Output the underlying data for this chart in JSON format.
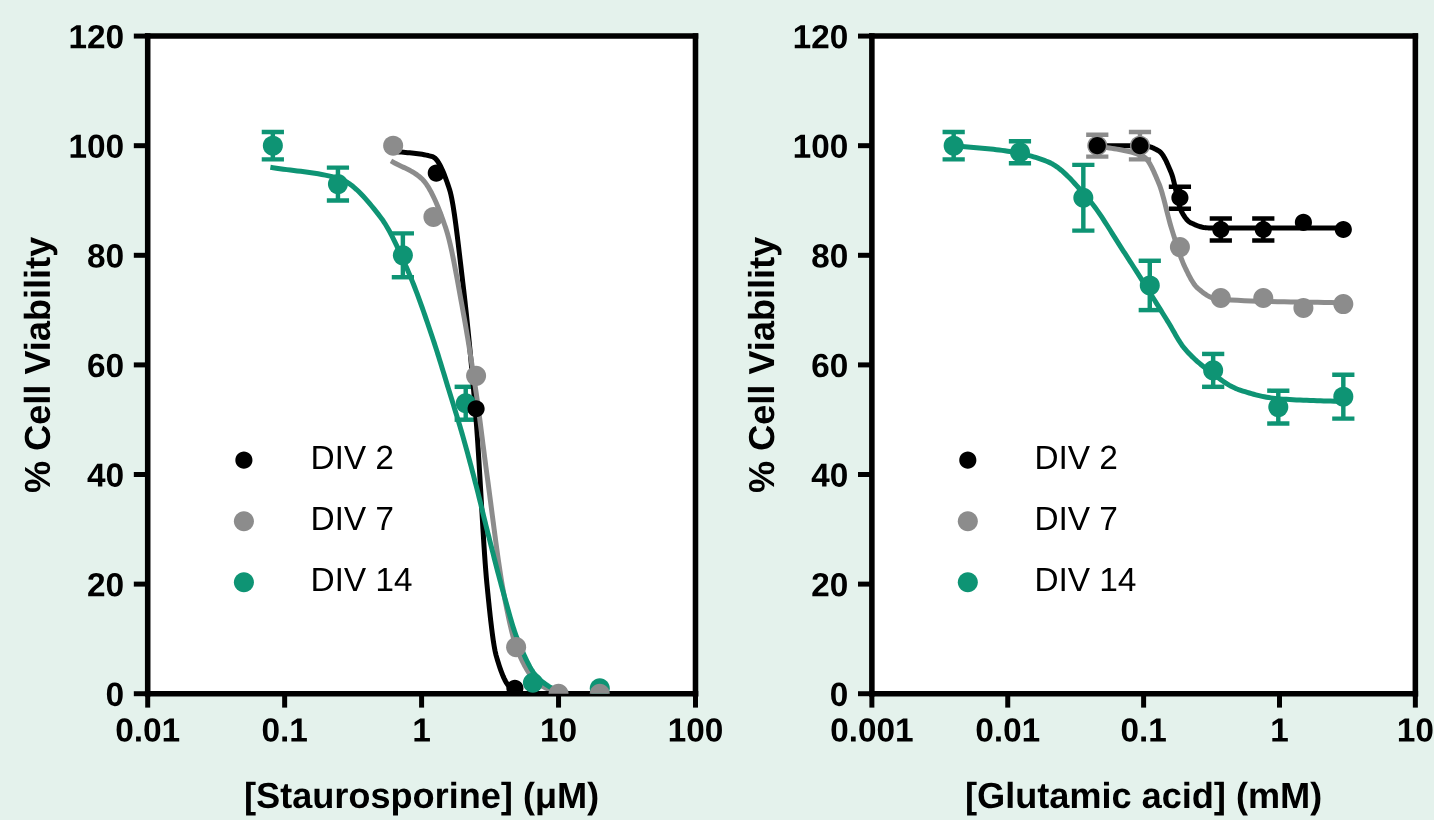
{
  "chart_data": [
    {
      "type": "scatter",
      "xlabel": "[Staurosporine] (μM)",
      "ylabel": "% Cell Viability",
      "log": "x",
      "xlim": [
        0.01,
        100
      ],
      "xticks": [
        0.01,
        0.1,
        1,
        10,
        100
      ],
      "ylim": [
        0,
        120
      ],
      "yticks": [
        0,
        20,
        40,
        60,
        80,
        100,
        120
      ],
      "grid": false,
      "legend": "bottom left",
      "marker": "circle",
      "series": [
        {
          "name": "DIV 2",
          "color": "#000000",
          "x": [
            1.28,
            2.5,
            4.8
          ],
          "values": [
            95,
            52,
            1
          ]
        },
        {
          "name": "DIV 7",
          "color": "#8c8c8c",
          "x": [
            0.62,
            1.22,
            2.5,
            4.9,
            10,
            20
          ],
          "values": [
            100,
            87,
            58,
            8.5,
            0,
            0
          ]
        },
        {
          "name": "DIV 14",
          "color": "#0e9474",
          "x": [
            0.082,
            0.245,
            0.73,
            2.1,
            6.5,
            20
          ],
          "values": [
            100,
            93,
            80,
            53,
            2,
            1
          ],
          "errors": [
            2.5,
            3,
            4,
            3,
            null,
            null
          ]
        },
        {
          "type": "line",
          "marker": "none",
          "color": "#000000",
          "x": [
            0.62,
            1.2,
            1.6,
            2.0,
            2.5,
            3.0,
            3.5,
            4.5,
            5
          ],
          "values": [
            99,
            98,
            92,
            75,
            50,
            20,
            7,
            1,
            0.5
          ]
        },
        {
          "type": "line",
          "marker": "none",
          "color": "#8c8c8c",
          "x": [
            0.62,
            1.0,
            1.5,
            2.0,
            2.5,
            3.0,
            4,
            5,
            7,
            10
          ],
          "values": [
            97,
            94,
            85,
            70,
            55,
            40,
            18,
            8,
            2,
            0
          ]
        },
        {
          "type": "line",
          "marker": "none",
          "color": "#0e9474",
          "x": [
            0.082,
            0.25,
            0.5,
            0.8,
            1.2,
            1.6,
            2,
            2.5,
            3,
            4,
            5,
            7,
            10,
            12
          ],
          "values": [
            96,
            94,
            87,
            77,
            65,
            55,
            47,
            38,
            30,
            18,
            10,
            3,
            0.5,
            0
          ]
        }
      ]
    },
    {
      "type": "scatter",
      "xlabel": "[Glutamic acid] (mM)",
      "ylabel": "% Cell Viability",
      "log": "x",
      "xlim": [
        0.001,
        10
      ],
      "xticks": [
        0.001,
        0.01,
        0.1,
        1,
        10
      ],
      "ylim": [
        0,
        120
      ],
      "yticks": [
        0,
        20,
        40,
        60,
        80,
        100,
        120
      ],
      "grid": false,
      "legend": "bottom left",
      "marker": "circle",
      "series": [
        {
          "name": "DIV 2",
          "color": "#000000",
          "x": [
            0.0456,
            0.094,
            0.185,
            0.37,
            0.76,
            1.5,
            2.95
          ],
          "values": [
            100,
            100,
            90.5,
            84.7,
            84.7,
            86,
            84.7
          ],
          "errors": [
            null,
            null,
            2,
            2,
            2,
            null,
            null
          ]
        },
        {
          "name": "DIV 7",
          "color": "#8c8c8c",
          "x": [
            0.0456,
            0.094,
            0.185,
            0.37,
            0.76,
            1.5,
            2.95
          ],
          "values": [
            100,
            100,
            81.5,
            72.2,
            72.2,
            70.4,
            71.1
          ],
          "errors": [
            2,
            2.5,
            null,
            null,
            null,
            null,
            null
          ]
        },
        {
          "name": "DIV 14",
          "color": "#0e9474",
          "x": [
            0.004,
            0.0123,
            0.036,
            0.111,
            0.325,
            0.98,
            2.95
          ],
          "values": [
            100,
            98.8,
            90.5,
            74.5,
            59,
            52.3,
            54.2
          ],
          "errors": [
            2.5,
            2,
            6,
            4.5,
            3,
            3,
            4
          ]
        },
        {
          "type": "line",
          "marker": "none",
          "color": "#000000",
          "x": [
            0.0456,
            0.1,
            0.13,
            0.16,
            0.19,
            0.22,
            0.3,
            3
          ],
          "values": [
            100,
            100,
            99,
            95,
            88,
            86,
            85,
            85
          ]
        },
        {
          "type": "line",
          "marker": "none",
          "color": "#8c8c8c",
          "x": [
            0.0456,
            0.1,
            0.13,
            0.16,
            0.2,
            0.25,
            0.35,
            3
          ],
          "values": [
            100,
            98,
            93,
            85,
            78,
            74,
            72,
            71.3
          ]
        },
        {
          "type": "line",
          "marker": "none",
          "color": "#0e9474",
          "x": [
            0.004,
            0.01,
            0.02,
            0.04,
            0.07,
            0.1,
            0.15,
            0.2,
            0.3,
            0.5,
            1,
            3
          ],
          "values": [
            100,
            99,
            97,
            90,
            81,
            75,
            68,
            63,
            59,
            55.5,
            53.8,
            53.3
          ]
        }
      ]
    }
  ]
}
